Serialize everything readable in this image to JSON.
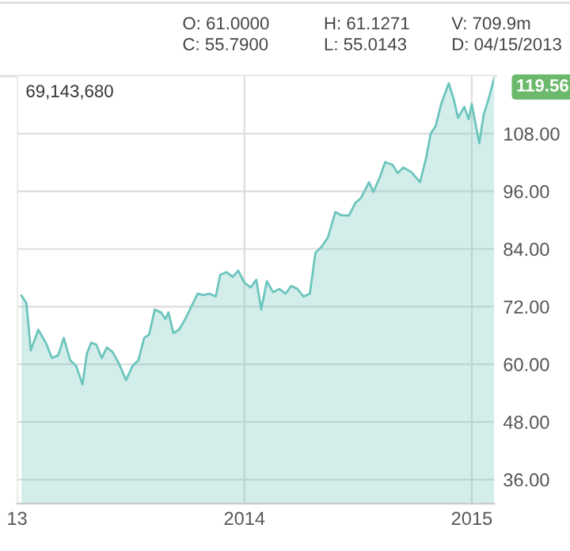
{
  "chart_data": {
    "type": "area",
    "x": [
      "2013-01-08",
      "2013-01-16",
      "2013-01-23",
      "2013-02-04",
      "2013-02-16",
      "2013-02-26",
      "2013-03-08",
      "2013-03-17",
      "2013-03-27",
      "2013-04-06",
      "2013-04-16",
      "2013-04-23",
      "2013-04-30",
      "2013-05-08",
      "2013-05-17",
      "2013-05-25",
      "2013-06-03",
      "2013-06-13",
      "2013-06-25",
      "2013-07-05",
      "2013-07-15",
      "2013-07-24",
      "2013-08-01",
      "2013-08-10",
      "2013-08-20",
      "2013-08-27",
      "2013-09-01",
      "2013-09-09",
      "2013-09-18",
      "2013-09-28",
      "2013-10-08",
      "2013-10-18",
      "2013-10-27",
      "2013-11-06",
      "2013-11-16",
      "2013-11-23",
      "2013-12-03",
      "2013-12-13",
      "2013-12-22",
      "2014-01-01",
      "2014-01-11",
      "2014-01-20",
      "2014-01-28",
      "2014-02-06",
      "2014-02-16",
      "2014-02-26",
      "2014-03-08",
      "2014-03-17",
      "2014-03-27",
      "2014-04-06",
      "2014-04-16",
      "2014-04-25",
      "2014-05-05",
      "2014-05-15",
      "2014-05-27",
      "2014-06-06",
      "2014-06-18",
      "2014-06-28",
      "2014-07-07",
      "2014-07-20",
      "2014-07-27",
      "2014-08-06",
      "2014-08-15",
      "2014-08-27",
      "2014-09-04",
      "2014-09-13",
      "2014-09-26",
      "2014-10-10",
      "2014-10-20",
      "2014-10-27",
      "2014-11-04",
      "2014-11-13",
      "2014-11-25",
      "2014-12-03",
      "2014-12-10",
      "2014-12-20",
      "2014-12-27",
      "2015-01-01",
      "2015-01-13",
      "2015-01-20",
      "2015-01-28",
      "2015-02-06"
    ],
    "series": [
      {
        "color": "#6cc5bd",
        "values": [
          74.3,
          72.7,
          62.9,
          67.2,
          64.5,
          61.3,
          61.9,
          65.5,
          60.9,
          59.6,
          55.8,
          62.2,
          64.5,
          64.1,
          61.3,
          63.5,
          62.6,
          60.3,
          56.7,
          59.6,
          60.9,
          65.5,
          66.2,
          71.4,
          70.8,
          69.4,
          70.8,
          66.5,
          67.2,
          69.4,
          72.1,
          74.7,
          74.4,
          74.7,
          74.1,
          78.6,
          79.2,
          78.2,
          79.5,
          77.0,
          76.0,
          77.6,
          71.4,
          77.3,
          75.0,
          75.7,
          74.7,
          76.3,
          75.7,
          74.1,
          74.7,
          83.2,
          84.5,
          86.4,
          91.7,
          91.0,
          91.0,
          93.6,
          94.6,
          97.9,
          95.9,
          98.8,
          102.1,
          101.5,
          99.8,
          101.0,
          100.0,
          97.9,
          103.1,
          108.0,
          109.6,
          114.2,
          118.5,
          115.2,
          111.3,
          113.6,
          111.0,
          114.2,
          106.0,
          111.9,
          115.2,
          119.56
        ]
      }
    ],
    "xlim": [
      "2013-01-01",
      "2015-02-06"
    ],
    "xticks": [
      {
        "value": "2013-01-01",
        "label": "13"
      },
      {
        "value": "2014-01-01",
        "label": "2014"
      },
      {
        "value": "2015-01-01",
        "label": "2015"
      }
    ],
    "ylim": [
      31,
      120
    ],
    "yticks": [
      {
        "value": 36,
        "label": "36.00"
      },
      {
        "value": 48,
        "label": "48.00"
      },
      {
        "value": 60,
        "label": "60.00"
      },
      {
        "value": 72,
        "label": "72.00"
      },
      {
        "value": 84,
        "label": "84.00"
      },
      {
        "value": 96,
        "label": "96.00"
      },
      {
        "value": 108,
        "label": "108.00"
      }
    ],
    "grid": true,
    "annotations": [
      "O: 61.0000",
      "H: 61.1271",
      "V: 709.9m",
      "C: 55.7900",
      "L: 55.0143",
      "D: 04/15/2013",
      "69,143,680",
      {
        "text": "119.56",
        "x": "2015-02-06",
        "y": 119.56
      }
    ]
  }
}
